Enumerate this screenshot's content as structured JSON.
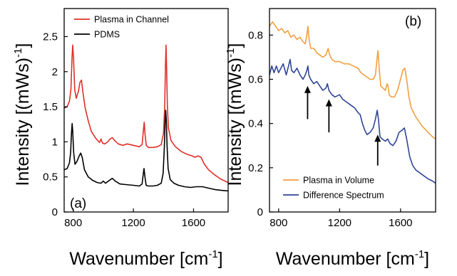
{
  "chart_data": [
    {
      "type": "line",
      "panel_label": "(a)",
      "xlabel": "Wavenumber [cm",
      "xlabel_sup": "-1",
      "xlabel_end": "]",
      "ylabel": "Intensity [(mWs)",
      "ylabel_sup": "-1",
      "ylabel_end": "]",
      "xlim": [
        740,
        1830
      ],
      "ylim": [
        0,
        2.9
      ],
      "xticks": [
        800,
        1200,
        1600
      ],
      "yticks": [
        0,
        0.5,
        1,
        1.5,
        2,
        2.5
      ],
      "ytick_labels": [
        "0",
        "0.5",
        "1",
        "1.5",
        "2",
        "2.5"
      ],
      "legend_position": "top-right",
      "series": [
        {
          "name": "Plasma in Channel",
          "color": "#e0302a",
          "points": [
            [
              740,
              1.48
            ],
            [
              760,
              1.5
            ],
            [
              775,
              1.58
            ],
            [
              785,
              1.75
            ],
            [
              792,
              2.2
            ],
            [
              797,
              2.38
            ],
            [
              802,
              2.2
            ],
            [
              810,
              1.75
            ],
            [
              820,
              1.62
            ],
            [
              835,
              1.72
            ],
            [
              845,
              1.85
            ],
            [
              855,
              1.88
            ],
            [
              865,
              1.7
            ],
            [
              880,
              1.48
            ],
            [
              900,
              1.3
            ],
            [
              920,
              1.15
            ],
            [
              950,
              1.05
            ],
            [
              975,
              0.99
            ],
            [
              985,
              1.04
            ],
            [
              995,
              0.98
            ],
            [
              1010,
              0.97
            ],
            [
              1030,
              1.0
            ],
            [
              1045,
              1.04
            ],
            [
              1060,
              1.06
            ],
            [
              1075,
              1.02
            ],
            [
              1100,
              0.97
            ],
            [
              1130,
              0.95
            ],
            [
              1160,
              0.97
            ],
            [
              1200,
              0.95
            ],
            [
              1240,
              0.93
            ],
            [
              1258,
              0.96
            ],
            [
              1266,
              1.15
            ],
            [
              1272,
              1.28
            ],
            [
              1278,
              1.1
            ],
            [
              1286,
              0.95
            ],
            [
              1300,
              0.92
            ],
            [
              1330,
              0.92
            ],
            [
              1360,
              0.93
            ],
            [
              1385,
              0.96
            ],
            [
              1400,
              1.12
            ],
            [
              1408,
              1.5
            ],
            [
              1413,
              2.05
            ],
            [
              1417,
              2.38
            ],
            [
              1421,
              2.05
            ],
            [
              1426,
              1.5
            ],
            [
              1433,
              1.2
            ],
            [
              1450,
              1.02
            ],
            [
              1480,
              0.93
            ],
            [
              1520,
              0.86
            ],
            [
              1560,
              0.82
            ],
            [
              1590,
              0.8
            ],
            [
              1610,
              0.78
            ],
            [
              1630,
              0.8
            ],
            [
              1650,
              0.78
            ],
            [
              1670,
              0.69
            ],
            [
              1700,
              0.6
            ],
            [
              1740,
              0.53
            ],
            [
              1780,
              0.47
            ],
            [
              1810,
              0.44
            ],
            [
              1830,
              0.42
            ]
          ]
        },
        {
          "name": "PDMS",
          "color": "#000000",
          "points": [
            [
              740,
              0.6
            ],
            [
              760,
              0.62
            ],
            [
              775,
              0.7
            ],
            [
              783,
              0.85
            ],
            [
              788,
              1.1
            ],
            [
              793,
              1.26
            ],
            [
              797,
              1.15
            ],
            [
              803,
              0.85
            ],
            [
              812,
              0.68
            ],
            [
              825,
              0.72
            ],
            [
              840,
              0.8
            ],
            [
              850,
              0.84
            ],
            [
              860,
              0.78
            ],
            [
              875,
              0.6
            ],
            [
              900,
              0.5
            ],
            [
              930,
              0.45
            ],
            [
              960,
              0.42
            ],
            [
              985,
              0.41
            ],
            [
              1000,
              0.44
            ],
            [
              1015,
              0.41
            ],
            [
              1040,
              0.45
            ],
            [
              1060,
              0.48
            ],
            [
              1080,
              0.44
            ],
            [
              1110,
              0.4
            ],
            [
              1150,
              0.39
            ],
            [
              1200,
              0.38
            ],
            [
              1240,
              0.37
            ],
            [
              1258,
              0.4
            ],
            [
              1265,
              0.53
            ],
            [
              1271,
              0.62
            ],
            [
              1277,
              0.5
            ],
            [
              1285,
              0.38
            ],
            [
              1300,
              0.37
            ],
            [
              1330,
              0.37
            ],
            [
              1360,
              0.38
            ],
            [
              1385,
              0.41
            ],
            [
              1398,
              0.55
            ],
            [
              1406,
              0.92
            ],
            [
              1411,
              1.3
            ],
            [
              1415,
              1.45
            ],
            [
              1419,
              1.3
            ],
            [
              1424,
              0.95
            ],
            [
              1431,
              0.62
            ],
            [
              1445,
              0.46
            ],
            [
              1470,
              0.41
            ],
            [
              1500,
              0.38
            ],
            [
              1540,
              0.36
            ],
            [
              1580,
              0.35
            ],
            [
              1620,
              0.36
            ],
            [
              1660,
              0.36
            ],
            [
              1700,
              0.34
            ],
            [
              1740,
              0.32
            ],
            [
              1780,
              0.31
            ],
            [
              1830,
              0.3
            ]
          ]
        }
      ]
    },
    {
      "type": "line",
      "panel_label": "(b)",
      "xlabel": "Wavenumber [cm",
      "xlabel_sup": "-1",
      "xlabel_end": "]",
      "ylabel": "Intensity [(mWs)",
      "ylabel_sup": "-1",
      "ylabel_end": "]",
      "xlim": [
        740,
        1830
      ],
      "ylim": [
        0,
        0.92
      ],
      "xticks": [
        800,
        1200,
        1600
      ],
      "yticks": [
        0,
        0.2,
        0.4,
        0.6,
        0.8
      ],
      "ytick_labels": [
        "0",
        "0.2",
        "0.4",
        "0.6",
        "0.8"
      ],
      "legend_position": "bottom-right",
      "annotations": [
        {
          "type": "arrow",
          "x": 990,
          "y_tail": 0.42,
          "y_head": 0.57
        },
        {
          "type": "arrow",
          "x": 1130,
          "y_tail": 0.36,
          "y_head": 0.51
        },
        {
          "type": "arrow",
          "x": 1450,
          "y_tail": 0.21,
          "y_head": 0.35
        }
      ],
      "series": [
        {
          "name": "Plasma in Volume",
          "color": "#f0a040",
          "points": [
            [
              740,
              0.84
            ],
            [
              760,
              0.86
            ],
            [
              780,
              0.84
            ],
            [
              800,
              0.82
            ],
            [
              820,
              0.83
            ],
            [
              840,
              0.81
            ],
            [
              860,
              0.82
            ],
            [
              880,
              0.79
            ],
            [
              900,
              0.8
            ],
            [
              920,
              0.78
            ],
            [
              940,
              0.79
            ],
            [
              960,
              0.77
            ],
            [
              975,
              0.76
            ],
            [
              985,
              0.8
            ],
            [
              992,
              0.84
            ],
            [
              998,
              0.79
            ],
            [
              1010,
              0.74
            ],
            [
              1030,
              0.74
            ],
            [
              1050,
              0.72
            ],
            [
              1070,
              0.71
            ],
            [
              1090,
              0.7
            ],
            [
              1110,
              0.71
            ],
            [
              1125,
              0.74
            ],
            [
              1135,
              0.71
            ],
            [
              1150,
              0.69
            ],
            [
              1170,
              0.68
            ],
            [
              1200,
              0.68
            ],
            [
              1230,
              0.67
            ],
            [
              1260,
              0.67
            ],
            [
              1290,
              0.66
            ],
            [
              1320,
              0.65
            ],
            [
              1340,
              0.63
            ],
            [
              1360,
              0.62
            ],
            [
              1380,
              0.61
            ],
            [
              1400,
              0.6
            ],
            [
              1420,
              0.6
            ],
            [
              1435,
              0.62
            ],
            [
              1445,
              0.69
            ],
            [
              1452,
              0.73
            ],
            [
              1460,
              0.65
            ],
            [
              1470,
              0.57
            ],
            [
              1485,
              0.56
            ],
            [
              1500,
              0.55
            ],
            [
              1512,
              0.58
            ],
            [
              1518,
              0.57
            ],
            [
              1525,
              0.53
            ],
            [
              1540,
              0.52
            ],
            [
              1560,
              0.52
            ],
            [
              1580,
              0.55
            ],
            [
              1600,
              0.6
            ],
            [
              1615,
              0.64
            ],
            [
              1628,
              0.65
            ],
            [
              1640,
              0.6
            ],
            [
              1655,
              0.52
            ],
            [
              1670,
              0.47
            ],
            [
              1700,
              0.43
            ],
            [
              1740,
              0.39
            ],
            [
              1780,
              0.36
            ],
            [
              1810,
              0.34
            ],
            [
              1830,
              0.33
            ]
          ]
        },
        {
          "name": "Difference Spectrum",
          "color": "#2f4596",
          "points": [
            [
              740,
              0.62
            ],
            [
              755,
              0.66
            ],
            [
              770,
              0.63
            ],
            [
              785,
              0.66
            ],
            [
              800,
              0.63
            ],
            [
              815,
              0.65
            ],
            [
              830,
              0.67
            ],
            [
              850,
              0.62
            ],
            [
              865,
              0.66
            ],
            [
              875,
              0.69
            ],
            [
              885,
              0.64
            ],
            [
              900,
              0.63
            ],
            [
              920,
              0.65
            ],
            [
              940,
              0.62
            ],
            [
              960,
              0.6
            ],
            [
              975,
              0.62
            ],
            [
              985,
              0.64
            ],
            [
              992,
              0.66
            ],
            [
              998,
              0.62
            ],
            [
              1010,
              0.6
            ],
            [
              1030,
              0.58
            ],
            [
              1050,
              0.59
            ],
            [
              1070,
              0.57
            ],
            [
              1090,
              0.55
            ],
            [
              1110,
              0.56
            ],
            [
              1120,
              0.58
            ],
            [
              1130,
              0.55
            ],
            [
              1150,
              0.53
            ],
            [
              1170,
              0.52
            ],
            [
              1200,
              0.53
            ],
            [
              1220,
              0.51
            ],
            [
              1240,
              0.5
            ],
            [
              1260,
              0.49
            ],
            [
              1280,
              0.48
            ],
            [
              1300,
              0.47
            ],
            [
              1320,
              0.45
            ],
            [
              1335,
              0.44
            ],
            [
              1350,
              0.4
            ],
            [
              1365,
              0.37
            ],
            [
              1380,
              0.35
            ],
            [
              1400,
              0.36
            ],
            [
              1420,
              0.38
            ],
            [
              1435,
              0.42
            ],
            [
              1447,
              0.46
            ],
            [
              1455,
              0.42
            ],
            [
              1465,
              0.34
            ],
            [
              1480,
              0.33
            ],
            [
              1500,
              0.32
            ],
            [
              1515,
              0.33
            ],
            [
              1530,
              0.31
            ],
            [
              1550,
              0.3
            ],
            [
              1570,
              0.32
            ],
            [
              1590,
              0.36
            ],
            [
              1610,
              0.37
            ],
            [
              1625,
              0.38
            ],
            [
              1640,
              0.33
            ],
            [
              1660,
              0.25
            ],
            [
              1680,
              0.21
            ],
            [
              1700,
              0.19
            ],
            [
              1740,
              0.17
            ],
            [
              1780,
              0.15
            ],
            [
              1810,
              0.14
            ],
            [
              1830,
              0.13
            ]
          ]
        }
      ]
    }
  ]
}
